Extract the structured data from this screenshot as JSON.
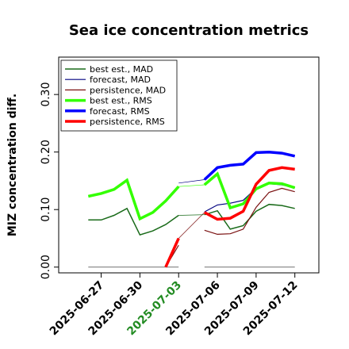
{
  "chart_data": {
    "type": "line",
    "title": "Sea ice concentration metrics",
    "ylabel": "MIZ concentration diff.",
    "xlabel": "",
    "ylim": [
      -0.01,
      0.365
    ],
    "xlim": [
      "2025-06-25",
      "2025-07-13"
    ],
    "yticks": [
      0.0,
      0.1,
      0.2,
      0.3
    ],
    "ytick_labels": [
      "0.00",
      "0.10",
      "0.20",
      "0.30"
    ],
    "xticks": [
      "2025-06-27",
      "2025-06-30",
      "2025-07-03",
      "2025-07-06",
      "2025-07-09",
      "2025-07-12"
    ],
    "xtick_colors": [
      "#000000",
      "#000000",
      "#228B22",
      "#000000",
      "#000000",
      "#000000"
    ],
    "grid": false,
    "legend_position": "upper-left",
    "series": [
      {
        "name": "best est., MAD",
        "color": "#1a6b1a",
        "width": 1.5,
        "x": [
          "2025-06-26",
          "2025-06-27",
          "2025-06-28",
          "2025-06-29",
          "2025-06-30",
          "2025-07-01",
          "2025-07-02",
          "2025-07-03",
          "2025-07-05",
          "2025-07-06",
          "2025-07-07",
          "2025-07-08",
          "2025-07-09",
          "2025-07-10",
          "2025-07-11",
          "2025-07-12"
        ],
        "y": [
          0.082,
          0.082,
          0.09,
          0.102,
          0.056,
          0.063,
          0.074,
          0.09,
          0.091,
          0.098,
          0.066,
          0.072,
          0.097,
          0.109,
          0.107,
          0.102
        ]
      },
      {
        "name": "forecast,  MAD",
        "color": "#000080",
        "width": 1.2,
        "x": [
          "2025-07-03",
          "2025-07-05",
          "2025-07-06",
          "2025-07-07",
          "2025-07-08",
          "2025-07-09",
          "2025-07-10",
          "2025-07-11",
          "2025-07-12"
        ],
        "y": [
          0.092,
          0.096,
          0.108,
          0.111,
          0.116,
          0.137,
          0.145,
          0.143,
          0.138
        ]
      },
      {
        "name": "persistence, MAD",
        "color": "#7a1010",
        "width": 1.2,
        "x": [
          "2025-07-02",
          "2025-07-03",
          "2025-07-05",
          "2025-07-06",
          "2025-07-07",
          "2025-07-08",
          "2025-07-09",
          "2025-07-10",
          "2025-07-11",
          "2025-07-12"
        ],
        "y": [
          0.0,
          0.038,
          0.064,
          0.057,
          0.058,
          0.066,
          0.104,
          0.13,
          0.137,
          0.131
        ]
      },
      {
        "name": "best est., RMS",
        "color": "#33ff00",
        "width": 3.5,
        "x": [
          "2025-06-26",
          "2025-06-27",
          "2025-06-28",
          "2025-06-29",
          "2025-06-30",
          "2025-07-01",
          "2025-07-02",
          "2025-07-03",
          "2025-07-05",
          "2025-07-06",
          "2025-07-07",
          "2025-07-08",
          "2025-07-09",
          "2025-07-10",
          "2025-07-11",
          "2025-07-12"
        ],
        "y": [
          0.123,
          0.128,
          0.135,
          0.151,
          0.084,
          0.095,
          0.115,
          0.14,
          0.143,
          0.162,
          0.103,
          0.11,
          0.136,
          0.146,
          0.145,
          0.138
        ]
      },
      {
        "name": "forecast,  RMS",
        "color": "#0000ff",
        "width": 3.5,
        "x": [
          "2025-07-03",
          "2025-07-05",
          "2025-07-06",
          "2025-07-07",
          "2025-07-08",
          "2025-07-09",
          "2025-07-10",
          "2025-07-11",
          "2025-07-12"
        ],
        "y": [
          0.146,
          0.152,
          0.173,
          0.177,
          0.179,
          0.199,
          0.2,
          0.198,
          0.193
        ]
      },
      {
        "name": "persistence, RMS",
        "color": "#ff0000",
        "width": 3.5,
        "x": [
          "2025-07-02",
          "2025-07-03",
          "2025-07-05",
          "2025-07-06",
          "2025-07-07",
          "2025-07-08",
          "2025-07-09",
          "2025-07-10",
          "2025-07-11",
          "2025-07-12"
        ],
        "y": [
          0.0,
          0.05,
          0.095,
          0.083,
          0.085,
          0.097,
          0.144,
          0.168,
          0.173,
          0.17
        ]
      }
    ],
    "connectors": [
      {
        "color": "#000080",
        "width": 0.7,
        "x": [
          "2025-07-03",
          "2025-07-05"
        ],
        "y": [
          0.146,
          0.152
        ]
      },
      {
        "color": "#7a1010",
        "width": 0.7,
        "x": [
          "2025-07-03",
          "2025-07-05"
        ],
        "y": [
          0.05,
          0.095
        ]
      },
      {
        "color": "#1a6b1a",
        "width": 0.7,
        "x": [
          "2025-07-03",
          "2025-07-05"
        ],
        "y": [
          0.09,
          0.091
        ]
      },
      {
        "color": "#33ff00",
        "width": 0.7,
        "x": [
          "2025-07-03",
          "2025-07-05"
        ],
        "y": [
          0.14,
          0.143
        ]
      }
    ],
    "zero_segments": [
      {
        "color": "#808080",
        "x": [
          "2025-06-26",
          "2025-07-03"
        ],
        "y": [
          0.0,
          0.0
        ]
      },
      {
        "color": "#808080",
        "x": [
          "2025-07-05",
          "2025-07-12"
        ],
        "y": [
          0.0,
          0.0
        ]
      }
    ]
  }
}
